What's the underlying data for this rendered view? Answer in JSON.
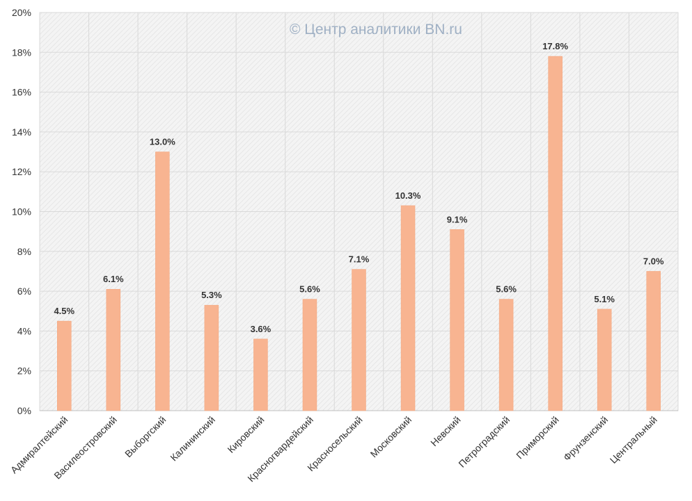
{
  "watermark": "© Центр аналитики BN.ru",
  "colors": {
    "bar": "#f8b491",
    "bar_stroke": "#f3a57c",
    "grid": "#d9d9d9",
    "plot_background": "#f2f2f2"
  },
  "chart_data": {
    "type": "bar",
    "categories": [
      "Адмиралтейский",
      "Василеостровский",
      "Выборгский",
      "Калининский",
      "Кировский",
      "Красногвардейский",
      "Красносельский",
      "Московский",
      "Невский",
      "Петроградский",
      "Приморский",
      "Фрунзенский",
      "Центральный"
    ],
    "values": [
      4.5,
      6.1,
      13.0,
      5.3,
      3.6,
      5.6,
      7.1,
      10.3,
      9.1,
      5.6,
      17.8,
      5.1,
      7.0
    ],
    "data_labels": [
      "4.5%",
      "6.1%",
      "13.0%",
      "5.3%",
      "3.6%",
      "5.6%",
      "7.1%",
      "10.3%",
      "9.1%",
      "5.6%",
      "17.8%",
      "5.1%",
      "7.0%"
    ],
    "ylim": [
      0,
      20
    ],
    "yticks": [
      "0%",
      "2%",
      "4%",
      "6%",
      "8%",
      "10%",
      "12%",
      "14%",
      "16%",
      "18%",
      "20%"
    ],
    "ytick_values": [
      0,
      2,
      4,
      6,
      8,
      10,
      12,
      14,
      16,
      18,
      20
    ],
    "title": "",
    "xlabel": "",
    "ylabel": "",
    "grid": true,
    "legend": "none"
  }
}
